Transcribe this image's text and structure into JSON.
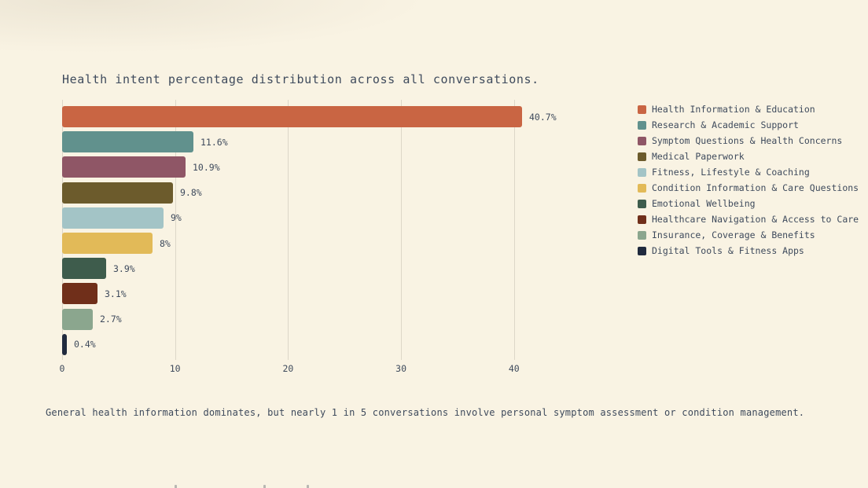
{
  "title": "Health intent percentage distribution across all conversations.",
  "caption": "General health information dominates, but nearly 1 in 5 conversations involve personal symptom assessment or condition management.",
  "colors": {
    "background": "#f9f3e3",
    "text": "#3e4a5c",
    "gridline": "#ddd7c8"
  },
  "chart_data": {
    "type": "bar",
    "orientation": "horizontal",
    "title": "Health intent percentage distribution across all conversations.",
    "categories": [
      "Health Information & Education",
      "Research & Academic Support",
      "Symptom Questions & Health Concerns",
      "Medical Paperwork",
      "Fitness, Lifestyle & Coaching",
      "Condition Information & Care Questions",
      "Emotional Wellbeing",
      "Healthcare Navigation & Access to Care",
      "Insurance, Coverage & Benefits",
      "Digital Tools & Fitness Apps"
    ],
    "values": [
      40.7,
      11.6,
      10.9,
      9.8,
      9,
      8,
      3.9,
      3.1,
      2.7,
      0.4
    ],
    "value_labels": [
      "40.7%",
      "11.6%",
      "10.9%",
      "9.8%",
      "9%",
      "8%",
      "3.9%",
      "3.1%",
      "2.7%",
      "0.4%"
    ],
    "bar_colors": [
      "#c96543",
      "#61918d",
      "#8f5666",
      "#6c5b2c",
      "#a3c4c6",
      "#e2ba58",
      "#3e5c4c",
      "#702f1a",
      "#8ba68e",
      "#202a3e"
    ],
    "xlabel": "",
    "ylabel": "",
    "xlim": [
      0,
      46
    ],
    "x_ticks": [
      0,
      10,
      20,
      30,
      40
    ],
    "x_tick_labels": [
      "0",
      "10",
      "20",
      "30",
      "40"
    ],
    "grid": true,
    "legend_position": "right"
  },
  "legend": {
    "items": [
      {
        "label": "Health Information & Education",
        "color": "#c96543"
      },
      {
        "label": "Research & Academic Support",
        "color": "#61918d"
      },
      {
        "label": "Symptom Questions & Health Concerns",
        "color": "#8f5666"
      },
      {
        "label": "Medical Paperwork",
        "color": "#6c5b2c"
      },
      {
        "label": "Fitness, Lifestyle & Coaching",
        "color": "#a3c4c6"
      },
      {
        "label": "Condition Information & Care Questions",
        "color": "#e2ba58"
      },
      {
        "label": "Emotional Wellbeing",
        "color": "#3e5c4c"
      },
      {
        "label": "Healthcare Navigation & Access to Care",
        "color": "#702f1a"
      },
      {
        "label": "Insurance, Coverage & Benefits",
        "color": "#8ba68e"
      },
      {
        "label": "Digital Tools & Fitness Apps",
        "color": "#202a3e"
      }
    ]
  }
}
